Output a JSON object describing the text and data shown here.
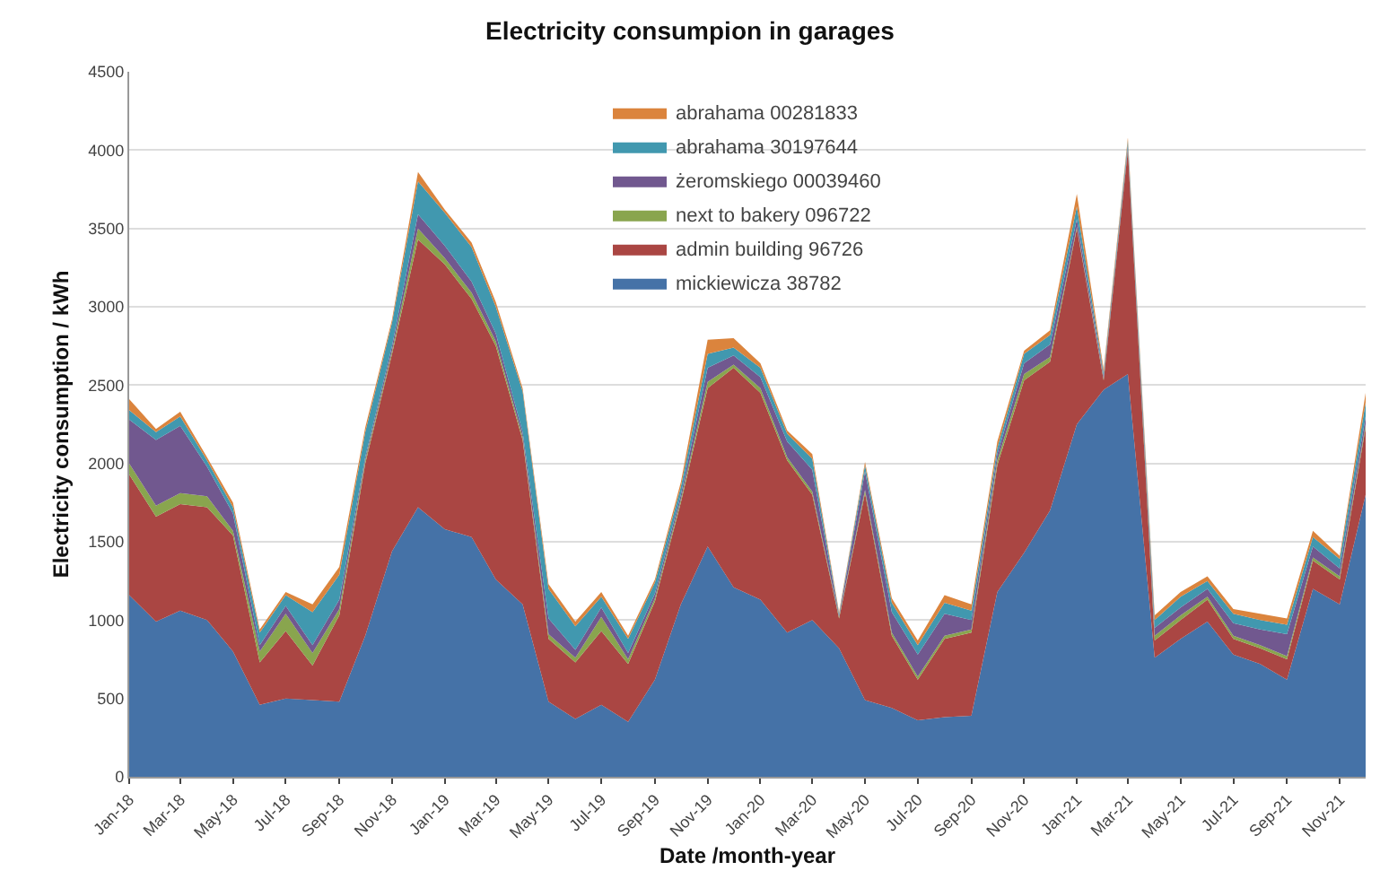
{
  "chart_data": {
    "type": "area",
    "stacked": true,
    "title": "Electricity consumpion in garages",
    "xlabel": "Date /month-year",
    "ylabel": "Electricity consumption / kWh",
    "x": [
      "2018-01",
      "2018-02",
      "2018-03",
      "2018-04",
      "2018-05",
      "2018-06",
      "2018-07",
      "2018-08",
      "2018-09",
      "2018-10",
      "2018-11",
      "2018-12",
      "2019-01",
      "2019-02",
      "2019-03",
      "2019-04",
      "2019-05",
      "2019-06",
      "2019-07",
      "2019-08",
      "2019-09",
      "2019-10",
      "2019-11",
      "2019-12",
      "2020-01",
      "2020-02",
      "2020-03",
      "2020-04",
      "2020-05",
      "2020-06",
      "2020-07",
      "2020-08",
      "2020-09",
      "2020-10",
      "2020-11",
      "2020-12",
      "2021-01",
      "2021-02",
      "2021-03",
      "2021-04",
      "2021-05",
      "2021-06",
      "2021-07",
      "2021-08",
      "2021-09",
      "2021-10",
      "2021-11",
      "2021-12"
    ],
    "series": [
      {
        "name": "mickiewicza 38782",
        "color": "#4572a7",
        "values": [
          1160,
          990,
          1060,
          1000,
          800,
          460,
          500,
          490,
          480,
          900,
          1440,
          1720,
          1580,
          1530,
          1260,
          1100,
          480,
          370,
          460,
          350,
          620,
          1100,
          1470,
          1210,
          1130,
          920,
          1000,
          820,
          490,
          440,
          360,
          380,
          390,
          1180,
          1430,
          1700,
          2250,
          2470,
          2570,
          760,
          880,
          990,
          780,
          720,
          620,
          1200,
          1100,
          1800
        ]
      },
      {
        "name": "admin building 96726",
        "color": "#aa4643",
        "values": [
          770,
          670,
          680,
          720,
          740,
          270,
          430,
          220,
          550,
          1100,
          1260,
          1710,
          1690,
          1520,
          1490,
          1050,
          400,
          360,
          470,
          370,
          500,
          650,
          1010,
          1400,
          1320,
          1100,
          800,
          190,
          1320,
          460,
          260,
          500,
          530,
          810,
          1100,
          950,
          1250,
          60,
          1430,
          110,
          120,
          140,
          100,
          100,
          130,
          180,
          160,
          430
        ]
      },
      {
        "name": "next to bakery 096722",
        "color": "#89a54e",
        "values": [
          70,
          70,
          70,
          70,
          30,
          70,
          110,
          80,
          40,
          20,
          20,
          70,
          40,
          40,
          30,
          20,
          30,
          30,
          90,
          30,
          20,
          20,
          40,
          20,
          30,
          20,
          20,
          10,
          20,
          20,
          20,
          20,
          20,
          30,
          40,
          30,
          10,
          10,
          10,
          30,
          30,
          20,
          20,
          20,
          20,
          20,
          20,
          20
        ]
      },
      {
        "name": "żeromskiego 00039460",
        "color": "#71588f",
        "values": [
          280,
          420,
          430,
          190,
          110,
          40,
          50,
          50,
          60,
          20,
          30,
          90,
          80,
          70,
          50,
          30,
          100,
          50,
          60,
          40,
          30,
          30,
          90,
          60,
          70,
          100,
          140,
          10,
          120,
          130,
          140,
          140,
          60,
          40,
          70,
          80,
          50,
          20,
          20,
          50,
          50,
          50,
          80,
          100,
          140,
          70,
          50,
          50
        ]
      },
      {
        "name": "abrahama 30197644",
        "color": "#4198af",
        "values": [
          60,
          50,
          60,
          40,
          40,
          80,
          70,
          210,
          160,
          160,
          150,
          210,
          210,
          220,
          170,
          260,
          190,
          150,
          70,
          90,
          70,
          50,
          90,
          50,
          60,
          50,
          70,
          10,
          40,
          60,
          60,
          70,
          60,
          40,
          60,
          60,
          80,
          20,
          30,
          50,
          70,
          50,
          60,
          60,
          60,
          60,
          60,
          90
        ]
      },
      {
        "name": "abrahama 00281833",
        "color": "#db843d",
        "values": [
          70,
          20,
          30,
          20,
          30,
          20,
          20,
          50,
          50,
          30,
          20,
          60,
          20,
          30,
          30,
          20,
          30,
          30,
          30,
          20,
          20,
          30,
          90,
          60,
          30,
          20,
          30,
          10,
          20,
          30,
          30,
          50,
          40,
          40,
          20,
          30,
          80,
          20,
          20,
          30,
          30,
          30,
          30,
          40,
          40,
          40,
          20,
          60
        ]
      }
    ],
    "xlim": [
      "2018-01",
      "2021-12"
    ],
    "xticks": [
      {
        "value": "2018-01",
        "label": "Jan-18"
      },
      {
        "value": "2018-03",
        "label": "Mar-18"
      },
      {
        "value": "2018-05",
        "label": "May-18"
      },
      {
        "value": "2018-07",
        "label": "Jul-18"
      },
      {
        "value": "2018-09",
        "label": "Sep-18"
      },
      {
        "value": "2018-11",
        "label": "Nov-18"
      },
      {
        "value": "2019-01",
        "label": "Jan-19"
      },
      {
        "value": "2019-03",
        "label": "Mar-19"
      },
      {
        "value": "2019-05",
        "label": "May-19"
      },
      {
        "value": "2019-07",
        "label": "Jul-19"
      },
      {
        "value": "2019-09",
        "label": "Sep-19"
      },
      {
        "value": "2019-11",
        "label": "Nov-19"
      },
      {
        "value": "2020-01",
        "label": "Jan-20"
      },
      {
        "value": "2020-03",
        "label": "Mar-20"
      },
      {
        "value": "2020-05",
        "label": "May-20"
      },
      {
        "value": "2020-07",
        "label": "Jul-20"
      },
      {
        "value": "2020-09",
        "label": "Sep-20"
      },
      {
        "value": "2020-11",
        "label": "Nov-20"
      },
      {
        "value": "2021-01",
        "label": "Jan-21"
      },
      {
        "value": "2021-03",
        "label": "Mar-21"
      },
      {
        "value": "2021-05",
        "label": "May-21"
      },
      {
        "value": "2021-07",
        "label": "Jul-21"
      },
      {
        "value": "2021-09",
        "label": "Sep-21"
      },
      {
        "value": "2021-11",
        "label": "Nov-21"
      }
    ],
    "ylim": [
      0,
      4500
    ],
    "yticks": [
      0,
      500,
      1000,
      1500,
      2000,
      2500,
      3000,
      3500,
      4000,
      4500
    ],
    "grid": "y",
    "legend": "top"
  }
}
